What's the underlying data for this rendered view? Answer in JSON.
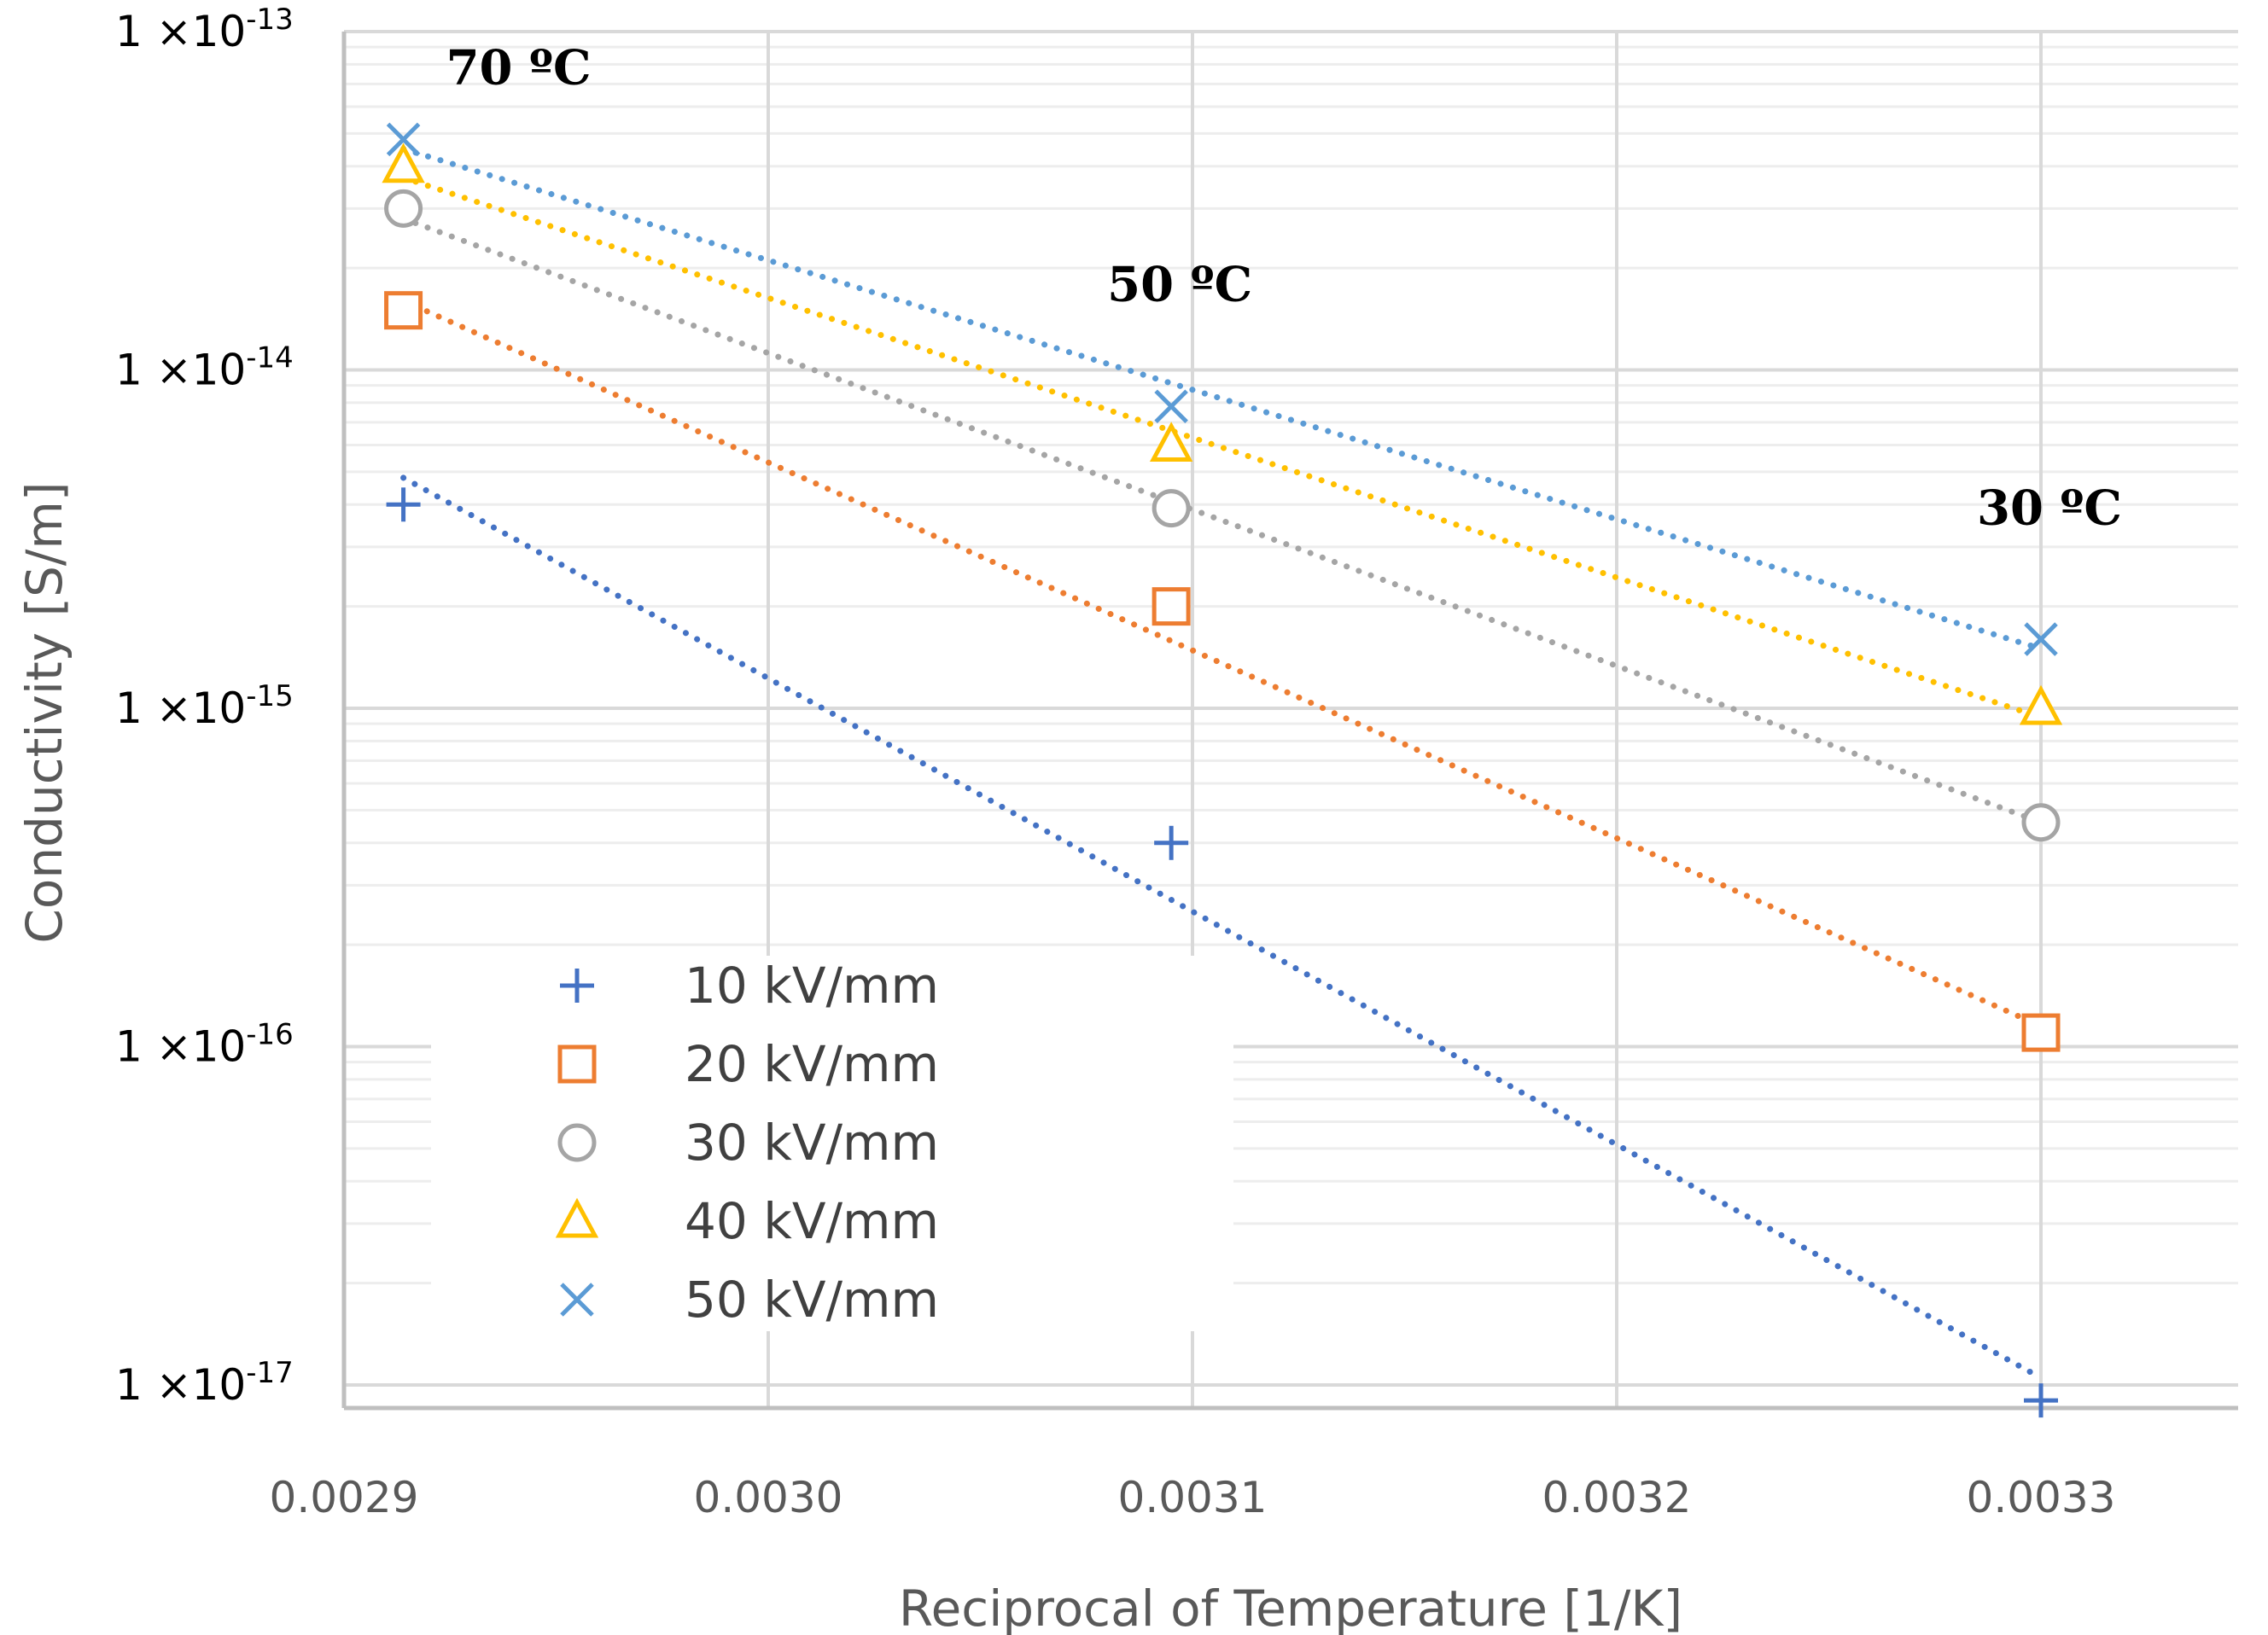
{
  "chart_data": {
    "type": "scatter",
    "title": "",
    "xlabel": "Reciprocal of Temperature [1/K]",
    "ylabel": "Conductivity  [S/m]",
    "xlim": [
      0.0029,
      0.00335
    ],
    "ylim_log10": [
      -17.1,
      -13
    ],
    "yscale": "log",
    "grid": true,
    "x_ticks": [
      {
        "value": 0.0029,
        "label": "0.0029"
      },
      {
        "value": 0.003,
        "label": "0.0030"
      },
      {
        "value": 0.0031,
        "label": "0.0031"
      },
      {
        "value": 0.0032,
        "label": "0.0032"
      },
      {
        "value": 0.0033,
        "label": "0.0033"
      }
    ],
    "y_ticks": [
      {
        "exp": -13,
        "base": "1 ×10",
        "sup": "-13"
      },
      {
        "exp": -14,
        "base": "1 ×10",
        "sup": "-14"
      },
      {
        "exp": -15,
        "base": "1 ×10",
        "sup": "-15"
      },
      {
        "exp": -16,
        "base": "1 ×10",
        "sup": "-16"
      },
      {
        "exp": -17,
        "base": "1 ×10",
        "sup": "-17"
      }
    ],
    "x": [
      0.002914,
      0.003095,
      0.0033
    ],
    "series": [
      {
        "name": "10 kV/mm",
        "marker": "plus",
        "color": "#4472C4",
        "values": [
          4e-15,
          4e-16,
          9e-18
        ],
        "trend": {
          "start": 4.8e-15,
          "end": 1.05e-17
        }
      },
      {
        "name": "20 kV/mm",
        "marker": "square",
        "color": "#ED7D31",
        "values": [
          1.5e-14,
          2e-15,
          1.1e-16
        ],
        "trend": {
          "start": 1.6e-14,
          "end": 1.15e-16
        }
      },
      {
        "name": "30 kV/mm",
        "marker": "circle",
        "color": "#A5A5A5",
        "values": [
          3e-14,
          3.9e-15,
          4.6e-16
        ],
        "trend": {
          "start": 2.8e-14,
          "end": 4.6e-16
        }
      },
      {
        "name": "40 kV/mm",
        "marker": "triangle",
        "color": "#FFC000",
        "values": [
          4e-14,
          6e-15,
          1e-15
        ],
        "trend": {
          "start": 3.7e-14,
          "end": 9.4e-16
        }
      },
      {
        "name": "50 kV/mm",
        "marker": "x",
        "color": "#5B9BD5",
        "values": [
          4.8e-14,
          7.8e-15,
          1.6e-15
        ],
        "trend": {
          "start": 4.5e-14,
          "end": 1.5e-15
        }
      }
    ],
    "annotations": [
      {
        "text": "70 ºC",
        "x": 0.002914,
        "y": 7e-14
      },
      {
        "text": "50 ºC",
        "x": 0.003095,
        "y": 1.6e-14
      },
      {
        "text": "30 ºC",
        "x": 0.0033,
        "y": 3.5e-15
      }
    ],
    "legend_position": "lower-left"
  }
}
